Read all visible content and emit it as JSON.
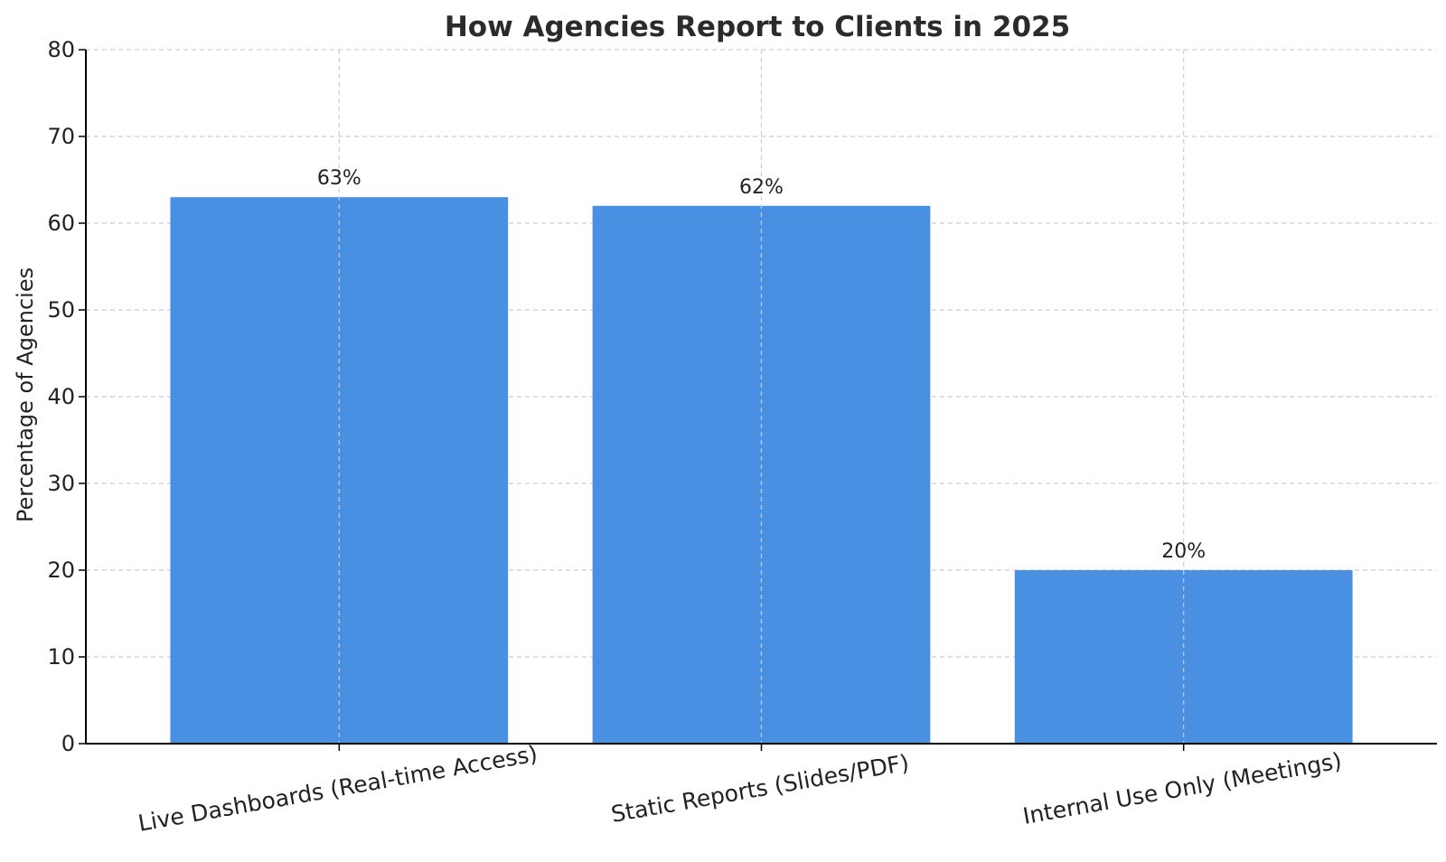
{
  "chart_data": {
    "type": "bar",
    "title": "How Agencies Report to Clients in 2025",
    "xlabel": "",
    "ylabel": "Percentage of Agencies",
    "categories": [
      "Live Dashboards (Real-time Access)",
      "Static Reports (Slides/PDF)",
      "Internal Use Only (Meetings)"
    ],
    "values": [
      63,
      62,
      20
    ],
    "data_labels": [
      "63%",
      "62%",
      "20%"
    ],
    "ylim": [
      0,
      80
    ],
    "yticks": [
      0,
      10,
      20,
      30,
      40,
      50,
      60,
      70,
      80
    ],
    "grid": true,
    "bar_color": "#4a90e2"
  }
}
